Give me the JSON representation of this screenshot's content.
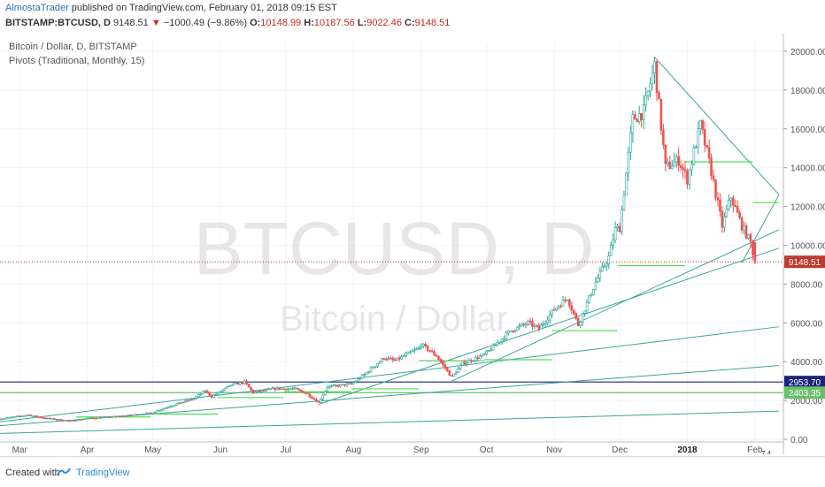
{
  "header": {
    "author": "AlmostaTrader",
    "published": "published on TradingView.com, February 01, 2018 09:15 EST",
    "symbol": "BITSTAMP:BTCUSD, D",
    "last": "9148.51",
    "change_arrow": "▼",
    "change": "−1000.49 (−9.86%)",
    "o_label": "O:",
    "o_value": "10148.99",
    "h_label": "H:",
    "h_value": "10187.56",
    "l_label": "L:",
    "l_value": "9022.46",
    "c_label": "C:",
    "c_value": "9148.51"
  },
  "legend": {
    "line1": "Bitcoin / Dollar, D, BITSTAMP",
    "line2": "Pivots (Traditional, Monthly, 15)"
  },
  "watermark": {
    "big": "BTCUSD, D",
    "small": "Bitcoin / Dollar"
  },
  "footer": {
    "created": "Created with",
    "brand": "TradingView"
  },
  "badge": {
    "text": "7 4"
  },
  "colors": {
    "up": "#26a69a",
    "down": "#ef5350",
    "candle_body": "#ffffff",
    "trendline": "#3aa39a",
    "pivot": "#4ddd4d",
    "blue_line": "#1a237e",
    "green_line": "#6abf69",
    "price_label": "#c0392b"
  },
  "chart_data": {
    "type": "candlestick",
    "title": "Bitcoin / Dollar, D, BITSTAMP",
    "y_axis": {
      "min": 0,
      "max": 20000,
      "ticks": [
        "0.00",
        "2000.00",
        "4000.00",
        "6000.00",
        "8000.00",
        "10000.00",
        "12000.00",
        "14000.00",
        "16000.00",
        "18000.00",
        "20000.00"
      ],
      "tick_values": [
        0,
        2000,
        4000,
        6000,
        8000,
        10000,
        12000,
        14000,
        16000,
        18000,
        20000
      ]
    },
    "x_axis": {
      "labels": [
        "Mar",
        "Apr",
        "May",
        "Jun",
        "Jul",
        "Aug",
        "Sep",
        "Oct",
        "Nov",
        "Dec",
        "2018",
        "Feb"
      ],
      "label_dates": [
        "2017-03-01",
        "2017-04-01",
        "2017-05-01",
        "2017-06-01",
        "2017-07-01",
        "2017-08-01",
        "2017-09-01",
        "2017-10-01",
        "2017-11-01",
        "2017-12-01",
        "2018-01-01",
        "2018-02-01"
      ],
      "start": "2017-02-20",
      "end": "2018-02-12"
    },
    "price_path": [
      [
        "2017-02-20",
        1050
      ],
      [
        "2017-03-05",
        1250
      ],
      [
        "2017-03-12",
        1100
      ],
      [
        "2017-03-24",
        950
      ],
      [
        "2017-04-01",
        1080
      ],
      [
        "2017-04-15",
        1180
      ],
      [
        "2017-04-30",
        1350
      ],
      [
        "2017-05-10",
        1750
      ],
      [
        "2017-05-20",
        2100
      ],
      [
        "2017-05-25",
        2500
      ],
      [
        "2017-05-28",
        2200
      ],
      [
        "2017-06-06",
        2800
      ],
      [
        "2017-06-12",
        2950
      ],
      [
        "2017-06-16",
        2400
      ],
      [
        "2017-06-25",
        2600
      ],
      [
        "2017-07-05",
        2600
      ],
      [
        "2017-07-10",
        2400
      ],
      [
        "2017-07-16",
        1900
      ],
      [
        "2017-07-20",
        2700
      ],
      [
        "2017-07-31",
        2850
      ],
      [
        "2017-08-05",
        3250
      ],
      [
        "2017-08-15",
        4200
      ],
      [
        "2017-08-20",
        4050
      ],
      [
        "2017-08-31",
        4700
      ],
      [
        "2017-09-01",
        4900
      ],
      [
        "2017-09-08",
        4300
      ],
      [
        "2017-09-15",
        3200
      ],
      [
        "2017-09-20",
        3900
      ],
      [
        "2017-09-30",
        4350
      ],
      [
        "2017-10-12",
        5600
      ],
      [
        "2017-10-20",
        6000
      ],
      [
        "2017-10-25",
        5700
      ],
      [
        "2017-11-01",
        6700
      ],
      [
        "2017-11-07",
        7300
      ],
      [
        "2017-11-12",
        5900
      ],
      [
        "2017-11-20",
        8100
      ],
      [
        "2017-11-26",
        9400
      ],
      [
        "2017-11-29",
        10800
      ],
      [
        "2017-12-01",
        10900
      ],
      [
        "2017-12-07",
        16500
      ],
      [
        "2017-12-12",
        16900
      ],
      [
        "2017-12-17",
        19300
      ],
      [
        "2017-12-22",
        14000
      ],
      [
        "2017-12-28",
        14400
      ],
      [
        "2018-01-01",
        13400
      ],
      [
        "2018-01-07",
        16200
      ],
      [
        "2018-01-12",
        13800
      ],
      [
        "2018-01-17",
        11000
      ],
      [
        "2018-01-21",
        12500
      ],
      [
        "2018-01-26",
        11000
      ],
      [
        "2018-01-30",
        10148.99
      ],
      [
        "2018-02-01",
        9148.51
      ]
    ],
    "trendlines": [
      {
        "from": [
          "2017-12-17",
          19700
        ],
        "to": [
          "2018-02-12",
          12600
        ]
      },
      {
        "from": [
          "2018-01-26",
          9100
        ],
        "to": [
          "2018-02-12",
          12600
        ]
      },
      {
        "from": [
          "2017-09-15",
          3000
        ],
        "to": [
          "2018-02-12",
          10800
        ]
      },
      {
        "from": [
          "2017-07-16",
          1800
        ],
        "to": [
          "2018-02-12",
          9850
        ]
      },
      {
        "from": [
          "2017-02-20",
          900
        ],
        "to": [
          "2018-02-12",
          5800
        ]
      },
      {
        "from": [
          "2017-02-20",
          700
        ],
        "to": [
          "2018-02-12",
          3800
        ]
      },
      {
        "from": [
          "2017-02-20",
          300
        ],
        "to": [
          "2018-02-12",
          1450
        ]
      }
    ],
    "horizontal_levels": [
      {
        "value": 2953.7,
        "label": "2953.70",
        "color": "blue"
      },
      {
        "value": 2403.35,
        "label": "2403.35",
        "color": "green"
      },
      {
        "value": 9148.51,
        "label": "9148.51",
        "color": "red"
      }
    ],
    "pivots": [
      {
        "from": "2017-03-27",
        "to": "2017-04-30",
        "value": 1150
      },
      {
        "from": "2017-04-30",
        "to": "2017-05-31",
        "value": 1300
      },
      {
        "from": "2017-05-31",
        "to": "2017-06-30",
        "value": 2150
      },
      {
        "from": "2017-06-30",
        "to": "2017-07-31",
        "value": 2450
      },
      {
        "from": "2017-07-31",
        "to": "2017-08-31",
        "value": 2600
      },
      {
        "from": "2017-08-31",
        "to": "2017-09-30",
        "value": 4050
      },
      {
        "from": "2017-09-30",
        "to": "2017-10-31",
        "value": 4100
      },
      {
        "from": "2017-10-31",
        "to": "2017-11-30",
        "value": 5600
      },
      {
        "from": "2017-11-30",
        "to": "2017-12-31",
        "value": 8950
      },
      {
        "from": "2017-12-31",
        "to": "2018-01-31",
        "value": 14300
      },
      {
        "from": "2018-01-31",
        "to": "2018-02-12",
        "value": 12200
      }
    ]
  }
}
